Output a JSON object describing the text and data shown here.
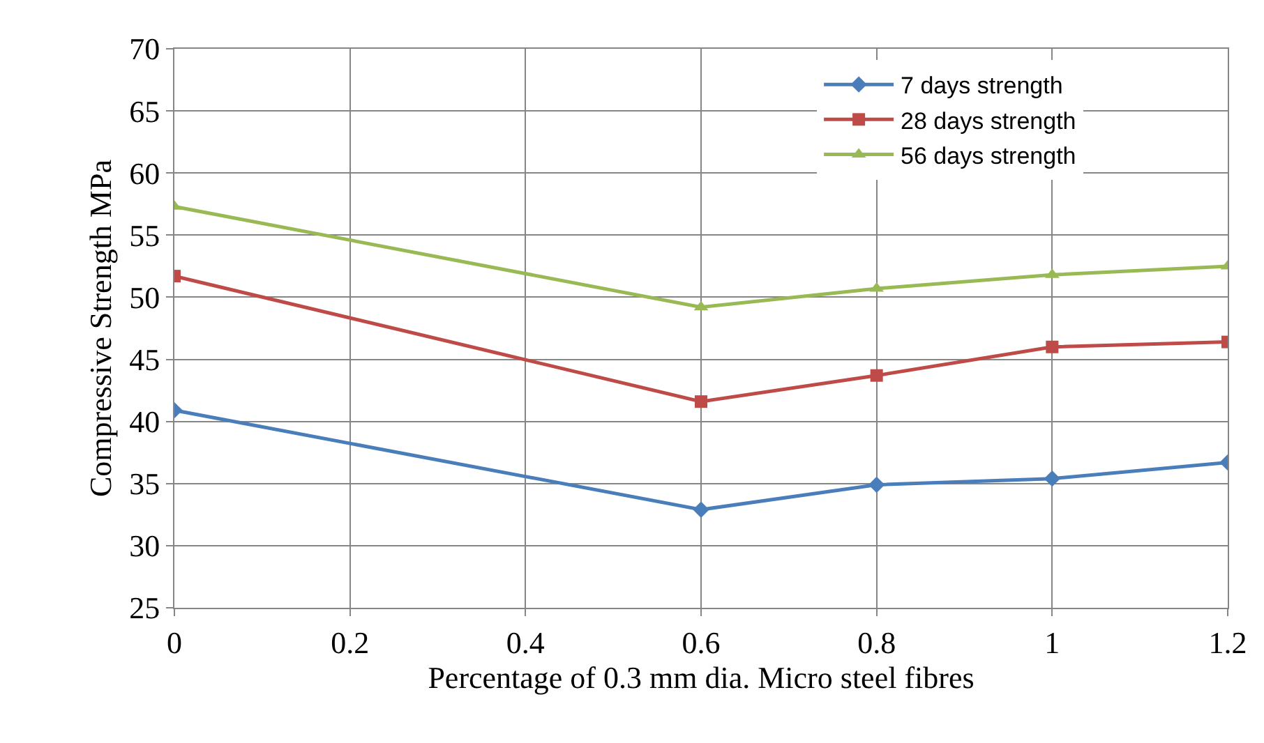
{
  "chart_data": {
    "type": "line",
    "xlabel": "Percentage of 0.3 mm dia. Micro steel fibres",
    "ylabel": "Compressive Strength MPa",
    "x": [
      0,
      0.6,
      0.8,
      1,
      1.2
    ],
    "series": [
      {
        "name": "7 days strength",
        "color": "#4a7ebb",
        "marker": "diamond",
        "values": [
          40.9,
          32.9,
          34.9,
          35.4,
          36.7
        ]
      },
      {
        "name": "28 days strength",
        "color": "#be4b48",
        "marker": "square",
        "values": [
          51.7,
          41.6,
          43.7,
          46.0,
          46.4
        ]
      },
      {
        "name": "56 days strength",
        "color": "#98b954",
        "marker": "triangle",
        "values": [
          57.3,
          49.2,
          50.7,
          51.8,
          52.5
        ]
      }
    ],
    "xlim": [
      0,
      1.2
    ],
    "xticks": [
      0,
      0.2,
      0.4,
      0.6,
      0.8,
      1,
      1.2
    ],
    "ylim": [
      25,
      70
    ],
    "yticks": [
      25,
      30,
      35,
      40,
      45,
      50,
      55,
      60,
      65,
      70
    ],
    "grid": true,
    "legend": "top right",
    "line_style": "solid"
  }
}
